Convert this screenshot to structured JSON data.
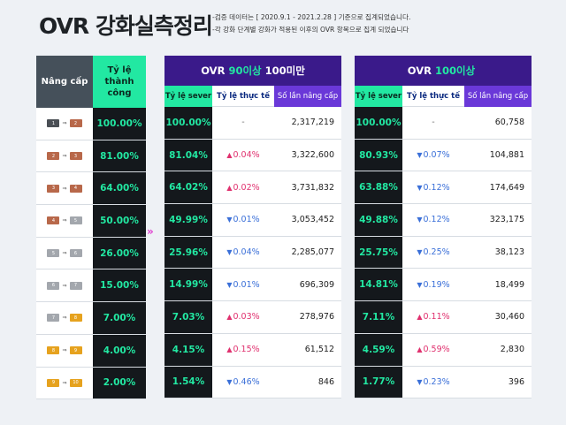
{
  "title": "OVR 강화실측정리",
  "notes": [
    "-검증 데이터는 [ 2020.9.1 - 2021.2.28 ] 기준으로 집계되었습니다.",
    "-각 강화 단계별 강화가 적용된 이후의 OVR 항목으로 집계 되었습니다"
  ],
  "left": {
    "col1": "Nâng cấp",
    "col2": "Tỷ lệ thành công",
    "rows": [
      {
        "from": "1",
        "to": "2",
        "rate": "100.00%"
      },
      {
        "from": "2",
        "to": "3",
        "rate": "81.00%"
      },
      {
        "from": "3",
        "to": "4",
        "rate": "64.00%"
      },
      {
        "from": "4",
        "to": "5",
        "rate": "50.00%"
      },
      {
        "from": "5",
        "to": "6",
        "rate": "26.00%"
      },
      {
        "from": "6",
        "to": "7",
        "rate": "15.00%"
      },
      {
        "from": "7",
        "to": "8",
        "rate": "7.00%"
      },
      {
        "from": "8",
        "to": "9",
        "rate": "4.00%"
      },
      {
        "from": "9",
        "to": "10",
        "rate": "2.00%"
      }
    ]
  },
  "tier_colors": [
    "#4a4f55",
    "#b8684a",
    "#b8684a",
    "#b8684a",
    "#a3a7ad",
    "#a3a7ad",
    "#a3a7ad",
    "#e6a21e",
    "#e6a21e",
    "#e6a21e"
  ],
  "chevron": "»",
  "panels": [
    {
      "title_pre": "OVR",
      "title_hl": "90이상",
      "title_post": "100미만",
      "h1": "Tỷ lệ sever",
      "h2": "Tỷ lệ thực tế",
      "h3": "Số lần nâng cấp",
      "rows": [
        {
          "sever": "100.00%",
          "dir": "none",
          "diff": "-",
          "count": "2,317,219"
        },
        {
          "sever": "81.04%",
          "dir": "up",
          "diff": "0.04%",
          "count": "3,322,600"
        },
        {
          "sever": "64.02%",
          "dir": "up",
          "diff": "0.02%",
          "count": "3,731,832"
        },
        {
          "sever": "49.99%",
          "dir": "down",
          "diff": "0.01%",
          "count": "3,053,452"
        },
        {
          "sever": "25.96%",
          "dir": "down",
          "diff": "0.04%",
          "count": "2,285,077"
        },
        {
          "sever": "14.99%",
          "dir": "down",
          "diff": "0.01%",
          "count": "696,309"
        },
        {
          "sever": "7.03%",
          "dir": "up",
          "diff": "0.03%",
          "count": "278,976"
        },
        {
          "sever": "4.15%",
          "dir": "up",
          "diff": "0.15%",
          "count": "61,512"
        },
        {
          "sever": "1.54%",
          "dir": "down",
          "diff": "0.46%",
          "count": "846"
        }
      ]
    },
    {
      "title_pre": "OVR",
      "title_hl": "100이상",
      "title_post": "",
      "h1": "Tỷ lệ sever",
      "h2": "Tỷ lệ thực tế",
      "h3": "Số lần nâng cấp",
      "rows": [
        {
          "sever": "100.00%",
          "dir": "none",
          "diff": "-",
          "count": "60,758"
        },
        {
          "sever": "80.93%",
          "dir": "down",
          "diff": "0.07%",
          "count": "104,881"
        },
        {
          "sever": "63.88%",
          "dir": "down",
          "diff": "0.12%",
          "count": "174,649"
        },
        {
          "sever": "49.88%",
          "dir": "down",
          "diff": "0.12%",
          "count": "323,175"
        },
        {
          "sever": "25.75%",
          "dir": "down",
          "diff": "0.25%",
          "count": "38,123"
        },
        {
          "sever": "14.81%",
          "dir": "down",
          "diff": "0.19%",
          "count": "18,499"
        },
        {
          "sever": "7.11%",
          "dir": "up",
          "diff": "0.11%",
          "count": "30,460"
        },
        {
          "sever": "4.59%",
          "dir": "up",
          "diff": "0.59%",
          "count": "2,830"
        },
        {
          "sever": "1.77%",
          "dir": "down",
          "diff": "0.23%",
          "count": "396"
        }
      ]
    }
  ]
}
